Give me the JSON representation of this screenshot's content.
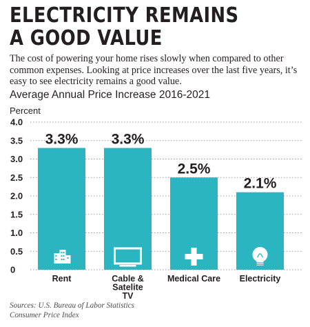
{
  "headline": [
    "ELECTRICITY REMAINS",
    "A GOOD VALUE"
  ],
  "intro": "The cost of powering your home rises slowly when compared to other common expenses. Looking at price increases over the last five years, it’s easy to see electricity remains a good value.",
  "chart_data": {
    "type": "bar",
    "title": "Average Annual Price Increase 2016-2021",
    "ylabel": "Percent",
    "xlabel": "",
    "categories": [
      [
        "Rent"
      ],
      [
        "Cable &",
        "Satelite",
        "TV"
      ],
      [
        "Medical Care"
      ],
      [
        "Electricity"
      ]
    ],
    "values": [
      3.3,
      3.3,
      2.5,
      2.1
    ],
    "value_labels": [
      "3.3%",
      "3.3%",
      "2.5%",
      "2.1%"
    ],
    "icons": [
      "building-icon",
      "tv-icon",
      "medical-cross-icon",
      "lightbulb-icon"
    ],
    "yticks": [
      "0",
      "0.5",
      "1.0",
      "1.5",
      "2.0",
      "2.5",
      "3.0",
      "3.5",
      "4.0"
    ],
    "ylim": [
      0,
      4
    ],
    "grid": "horizontal-dotted",
    "colors": {
      "bar": "#2bb5c0",
      "grid": "#9a9a9a",
      "icon": "#ffffff",
      "text": "#231f20"
    }
  },
  "source": [
    "Sources: U.S. Bureau of Labor Statistics",
    "Consumer Price Index"
  ]
}
